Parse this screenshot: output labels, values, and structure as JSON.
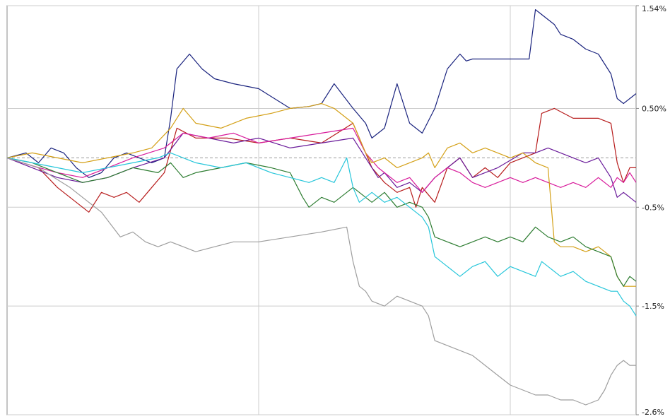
{
  "chart_data": {
    "type": "line",
    "title": "",
    "xlabel": "",
    "ylabel": "",
    "y_axis_position": "right",
    "y_unit": "%",
    "ylim": [
      -2.6,
      1.54
    ],
    "y_ticks": [
      {
        "value": 1.54,
        "label": "1.54%"
      },
      {
        "value": 0.5,
        "label": "0.50%"
      },
      {
        "value": -0.5,
        "label": "-0.5%"
      },
      {
        "value": -1.5,
        "label": "-1.5%"
      },
      {
        "value": -2.6,
        "label": "-2.6%"
      }
    ],
    "x_range": [
      0,
      100
    ],
    "x_gridlines": [
      40,
      80
    ],
    "baseline": 0,
    "grid": true,
    "legend": "none",
    "colors": {
      "grid": "#cccccc",
      "frame": "#888888",
      "baseline": "#999999",
      "text": "#222222"
    },
    "series": [
      {
        "color": "#1a237e",
        "x": [
          0,
          3,
          5,
          7,
          9,
          11,
          13,
          15,
          17,
          19,
          21,
          23,
          25,
          26,
          27,
          29,
          31,
          33,
          36,
          40,
          45,
          48,
          50,
          52,
          55,
          57,
          58,
          60,
          62,
          64,
          66,
          68,
          70,
          72,
          73,
          74,
          76,
          80,
          83,
          84,
          86,
          87,
          88,
          90,
          92,
          94,
          96,
          97,
          98,
          99,
          100
        ],
        "y": [
          0,
          0.05,
          -0.05,
          0.1,
          0.05,
          -0.1,
          -0.2,
          -0.15,
          0.0,
          0.05,
          0.0,
          -0.05,
          0.0,
          0.4,
          0.9,
          1.05,
          0.9,
          0.8,
          0.75,
          0.7,
          0.5,
          0.52,
          0.55,
          0.75,
          0.5,
          0.35,
          0.2,
          0.3,
          0.75,
          0.35,
          0.25,
          0.5,
          0.9,
          1.05,
          0.98,
          1.0,
          1.0,
          1.0,
          1.0,
          1.5,
          1.4,
          1.35,
          1.25,
          1.2,
          1.1,
          1.05,
          0.85,
          0.6,
          0.55,
          0.6,
          0.65
        ]
      },
      {
        "color": "#b71c1c",
        "x": [
          0,
          5,
          8,
          11,
          13,
          15,
          17,
          19,
          21,
          23,
          25,
          27,
          30,
          35,
          40,
          45,
          50,
          55,
          57,
          58,
          60,
          62,
          64,
          65,
          66,
          68,
          70,
          72,
          74,
          76,
          78,
          80,
          82,
          84,
          85,
          87,
          90,
          94,
          96,
          97,
          98,
          99,
          100
        ],
        "y": [
          0,
          -0.1,
          -0.3,
          -0.45,
          -0.55,
          -0.35,
          -0.4,
          -0.35,
          -0.45,
          -0.3,
          -0.15,
          0.3,
          0.2,
          0.2,
          0.15,
          0.2,
          0.15,
          0.35,
          0.05,
          -0.1,
          -0.25,
          -0.35,
          -0.3,
          -0.5,
          -0.3,
          -0.45,
          -0.1,
          0.0,
          -0.2,
          -0.1,
          -0.2,
          -0.05,
          0.0,
          0.05,
          0.45,
          0.5,
          0.4,
          0.4,
          0.35,
          -0.05,
          -0.25,
          -0.1,
          -0.1
        ]
      },
      {
        "color": "#6a1b9a",
        "x": [
          0,
          4,
          8,
          12,
          16,
          20,
          25,
          28,
          32,
          36,
          40,
          45,
          50,
          55,
          57,
          59,
          60,
          62,
          64,
          66,
          68,
          70,
          72,
          74,
          78,
          82,
          84,
          86,
          88,
          90,
          92,
          94,
          96,
          97,
          98,
          99,
          100
        ],
        "y": [
          0,
          -0.1,
          -0.2,
          -0.25,
          -0.2,
          -0.1,
          0.0,
          0.25,
          0.2,
          0.15,
          0.2,
          0.1,
          0.15,
          0.2,
          0.0,
          -0.2,
          -0.15,
          -0.3,
          -0.25,
          -0.35,
          -0.2,
          -0.1,
          0.0,
          -0.2,
          -0.1,
          0.05,
          0.05,
          0.1,
          0.05,
          0.0,
          -0.05,
          0.0,
          -0.2,
          -0.4,
          -0.35,
          -0.4,
          -0.45
        ]
      },
      {
        "color": "#d81b9b",
        "x": [
          0,
          4,
          8,
          12,
          16,
          20,
          25,
          28,
          32,
          36,
          40,
          45,
          50,
          55,
          57,
          59,
          60,
          62,
          64,
          66,
          68,
          70,
          72,
          74,
          76,
          78,
          80,
          82,
          84,
          86,
          88,
          90,
          92,
          94,
          96,
          97,
          98,
          99,
          100
        ],
        "y": [
          0,
          -0.08,
          -0.15,
          -0.2,
          -0.1,
          0.0,
          0.1,
          0.25,
          0.2,
          0.25,
          0.15,
          0.2,
          0.25,
          0.3,
          0.05,
          -0.1,
          -0.15,
          -0.25,
          -0.2,
          -0.35,
          -0.2,
          -0.1,
          -0.15,
          -0.25,
          -0.3,
          -0.25,
          -0.2,
          -0.25,
          -0.2,
          -0.25,
          -0.3,
          -0.25,
          -0.3,
          -0.2,
          -0.3,
          -0.2,
          -0.25,
          -0.15,
          -0.25
        ]
      },
      {
        "color": "#d4a017",
        "x": [
          0,
          4,
          8,
          12,
          16,
          20,
          23,
          26,
          28,
          30,
          34,
          38,
          42,
          45,
          48,
          50,
          52,
          55,
          56,
          57,
          58,
          60,
          62,
          64,
          66,
          67,
          68,
          70,
          72,
          74,
          76,
          78,
          80,
          82,
          84,
          86,
          87,
          88,
          90,
          92,
          94,
          96,
          97,
          98,
          99,
          100
        ],
        "y": [
          0,
          0.05,
          0.0,
          -0.05,
          0.0,
          0.05,
          0.1,
          0.3,
          0.5,
          0.35,
          0.3,
          0.4,
          0.45,
          0.5,
          0.52,
          0.55,
          0.5,
          0.35,
          0.2,
          0.05,
          -0.05,
          0.0,
          -0.1,
          -0.05,
          0.0,
          0.05,
          -0.1,
          0.1,
          0.15,
          0.05,
          0.1,
          0.05,
          0.0,
          0.05,
          -0.05,
          -0.1,
          -0.85,
          -0.9,
          -0.9,
          -0.95,
          -0.9,
          -1.0,
          -1.2,
          -1.3,
          -1.3,
          -1.3
        ]
      },
      {
        "color": "#2e7d32",
        "x": [
          0,
          4,
          8,
          12,
          16,
          20,
          24,
          26,
          28,
          30,
          34,
          38,
          42,
          45,
          47,
          48,
          50,
          52,
          55,
          57,
          58,
          60,
          62,
          64,
          66,
          67,
          68,
          70,
          72,
          74,
          76,
          78,
          80,
          82,
          84,
          85,
          86,
          88,
          90,
          92,
          94,
          96,
          97,
          98,
          99,
          100
        ],
        "y": [
          0,
          -0.05,
          -0.15,
          -0.25,
          -0.2,
          -0.1,
          -0.15,
          -0.05,
          -0.2,
          -0.15,
          -0.1,
          -0.05,
          -0.1,
          -0.15,
          -0.4,
          -0.5,
          -0.4,
          -0.45,
          -0.3,
          -0.4,
          -0.45,
          -0.35,
          -0.5,
          -0.45,
          -0.5,
          -0.6,
          -0.8,
          -0.85,
          -0.9,
          -0.85,
          -0.8,
          -0.85,
          -0.8,
          -0.85,
          -0.7,
          -0.75,
          -0.8,
          -0.85,
          -0.8,
          -0.9,
          -0.95,
          -1.0,
          -1.2,
          -1.3,
          -1.2,
          -1.25
        ]
      },
      {
        "color": "#26c6da",
        "x": [
          0,
          4,
          8,
          12,
          16,
          20,
          24,
          26,
          28,
          30,
          34,
          38,
          42,
          45,
          48,
          50,
          52,
          54,
          55,
          56,
          57,
          58,
          60,
          62,
          64,
          66,
          67,
          68,
          70,
          72,
          74,
          76,
          78,
          80,
          82,
          84,
          85,
          86,
          88,
          90,
          92,
          94,
          96,
          97,
          98,
          99,
          100
        ],
        "y": [
          0,
          -0.05,
          -0.1,
          -0.15,
          -0.1,
          -0.05,
          0.0,
          0.05,
          0.0,
          -0.05,
          -0.1,
          -0.05,
          -0.15,
          -0.2,
          -0.25,
          -0.2,
          -0.25,
          0.0,
          -0.3,
          -0.45,
          -0.4,
          -0.35,
          -0.45,
          -0.4,
          -0.5,
          -0.6,
          -0.7,
          -1.0,
          -1.1,
          -1.2,
          -1.1,
          -1.05,
          -1.2,
          -1.1,
          -1.15,
          -1.2,
          -1.05,
          -1.1,
          -1.2,
          -1.15,
          -1.25,
          -1.3,
          -1.35,
          -1.35,
          -1.45,
          -1.5,
          -1.6
        ]
      },
      {
        "color": "#9e9e9e",
        "x": [
          0,
          5,
          10,
          15,
          18,
          20,
          22,
          24,
          26,
          28,
          30,
          33,
          36,
          40,
          45,
          50,
          54,
          55,
          56,
          57,
          58,
          60,
          62,
          64,
          66,
          67,
          68,
          70,
          72,
          74,
          76,
          78,
          80,
          82,
          84,
          86,
          88,
          90,
          92,
          94,
          95,
          96,
          97,
          98,
          99,
          100
        ],
        "y": [
          0,
          -0.1,
          -0.3,
          -0.55,
          -0.8,
          -0.75,
          -0.85,
          -0.9,
          -0.85,
          -0.9,
          -0.95,
          -0.9,
          -0.85,
          -0.85,
          -0.8,
          -0.75,
          -0.7,
          -1.05,
          -1.3,
          -1.35,
          -1.45,
          -1.5,
          -1.4,
          -1.45,
          -1.5,
          -1.6,
          -1.85,
          -1.9,
          -1.95,
          -2.0,
          -2.1,
          -2.2,
          -2.3,
          -2.35,
          -2.4,
          -2.4,
          -2.45,
          -2.45,
          -2.5,
          -2.45,
          -2.35,
          -2.2,
          -2.1,
          -2.05,
          -2.1,
          -2.1
        ]
      }
    ]
  }
}
